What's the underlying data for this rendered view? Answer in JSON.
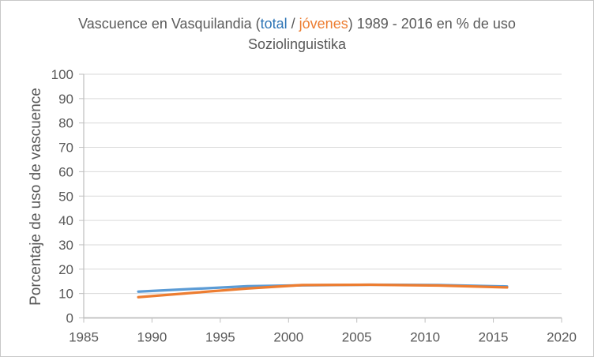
{
  "title": {
    "line1_prefix": "Vascuence en Vasquilandia (",
    "series1_label": "total",
    "separator": " / ",
    "series2_label": "jóvenes",
    "line1_suffix": ") 1989 - 2016 en % de uso",
    "line2": "Soziolinguistika"
  },
  "colors": {
    "title_text": "#595959",
    "series1_word": "#2E75B6",
    "series2_word": "#ED7D31",
    "background": "#FFFFFF",
    "border": "#C8C8C8"
  },
  "chart_data": {
    "type": "line",
    "title": "Vascuence en Vasquilandia (total / jóvenes) 1989 - 2016 en % de uso Soziolinguistika",
    "xlabel": "",
    "ylabel": "Porcentaje de uso de vascuence",
    "x": [
      1989,
      1993,
      1997,
      2001,
      2006,
      2011,
      2016
    ],
    "series": [
      {
        "name": "total",
        "name_key": "total",
        "color": "#5B9BD5",
        "values": [
          10.8,
          11.9,
          13.0,
          13.4,
          13.6,
          13.5,
          12.9
        ]
      },
      {
        "name": "jóvenes",
        "name_key": "jovenes",
        "color": "#ED7D31",
        "values": [
          8.5,
          10.3,
          12.1,
          13.5,
          13.6,
          13.3,
          12.5
        ]
      }
    ],
    "xlim": [
      1985,
      2020
    ],
    "ylim": [
      0,
      100
    ],
    "x_ticks": [
      1985,
      1990,
      1995,
      2000,
      2005,
      2010,
      2015,
      2020
    ],
    "y_ticks": [
      0,
      10,
      20,
      30,
      40,
      50,
      60,
      70,
      80,
      90,
      100
    ],
    "grid": "horizontal",
    "legend": "none",
    "gridline_color": "#D9D9D9",
    "axis_color": "#BFBFBF",
    "tick_label_color": "#595959",
    "tick_label_font_size": 17
  }
}
